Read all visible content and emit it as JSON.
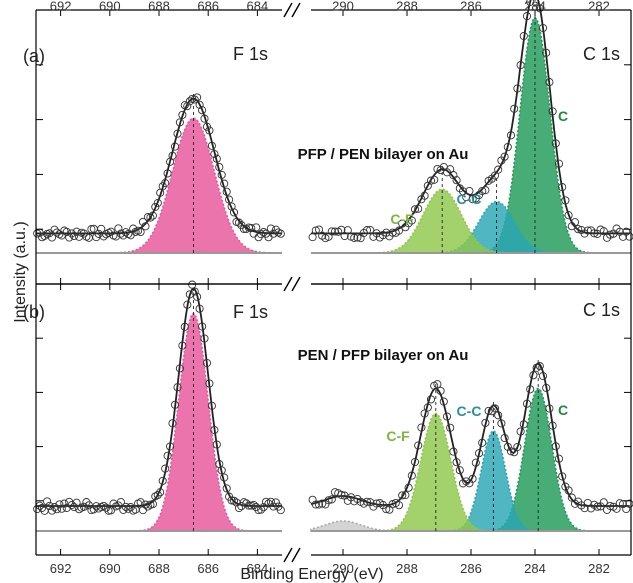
{
  "chart_data": {
    "type": "line",
    "xlabel": "Binding Energy (eV)",
    "ylabel": "Intensity (a.u.)",
    "axis_break": true,
    "regions": [
      {
        "name": "F 1s",
        "xlim": [
          693,
          683
        ],
        "ticks": [
          692,
          690,
          688,
          686,
          684
        ]
      },
      {
        "name": "C 1s",
        "xlim": [
          291,
          281
        ],
        "ticks": [
          290,
          288,
          286,
          284,
          282
        ]
      }
    ],
    "colors": {
      "F": "#e8559b",
      "C": "#1e9a57",
      "CC": "#2aa6b4",
      "CF": "#8fc74a",
      "fit": "#222222",
      "data": "#333333",
      "background": "#999999",
      "shakeup": "#aaaaaa",
      "label_C": "#1e8a3c",
      "label_CC": "#2a8fa0",
      "label_CF": "#7ab83a"
    },
    "panels": [
      {
        "tag": "(a)",
        "sample": "PFP / PEN bilayer on Au",
        "f1s": {
          "label": "F 1s",
          "baseline": 0.08,
          "peaks": [
            {
              "center": 686.6,
              "fwhm": 2.0,
              "height": 0.55,
              "color": "F"
            }
          ]
        },
        "c1s": {
          "label": "C 1s",
          "baseline": 0.08,
          "peaks": [
            {
              "name": "C",
              "center": 284.0,
              "fwhm": 1.1,
              "height": 0.96,
              "color": "C"
            },
            {
              "name": "C-C",
              "center": 285.2,
              "fwhm": 1.3,
              "height": 0.21,
              "color": "CC"
            },
            {
              "name": "C-F",
              "center": 286.9,
              "fwhm": 1.4,
              "height": 0.26,
              "color": "CF"
            }
          ]
        }
      },
      {
        "tag": "(b)",
        "sample": "PEN / PFP bilayer on Au",
        "f1s": {
          "label": "F 1s",
          "baseline": 0.1,
          "peaks": [
            {
              "center": 686.6,
              "fwhm": 1.4,
              "height": 0.87,
              "color": "F"
            }
          ]
        },
        "c1s": {
          "label": "C 1s",
          "baseline": 0.1,
          "peaks": [
            {
              "name": "C",
              "center": 283.9,
              "fwhm": 1.0,
              "height": 0.57,
              "color": "C"
            },
            {
              "name": "C-C",
              "center": 285.3,
              "fwhm": 0.9,
              "height": 0.4,
              "color": "CC"
            },
            {
              "name": "C-F",
              "center": 287.1,
              "fwhm": 1.1,
              "height": 0.47,
              "color": "CF"
            },
            {
              "name": "",
              "center": 290.0,
              "fwhm": 1.3,
              "height": 0.04,
              "color": "shakeup"
            }
          ]
        }
      }
    ]
  }
}
